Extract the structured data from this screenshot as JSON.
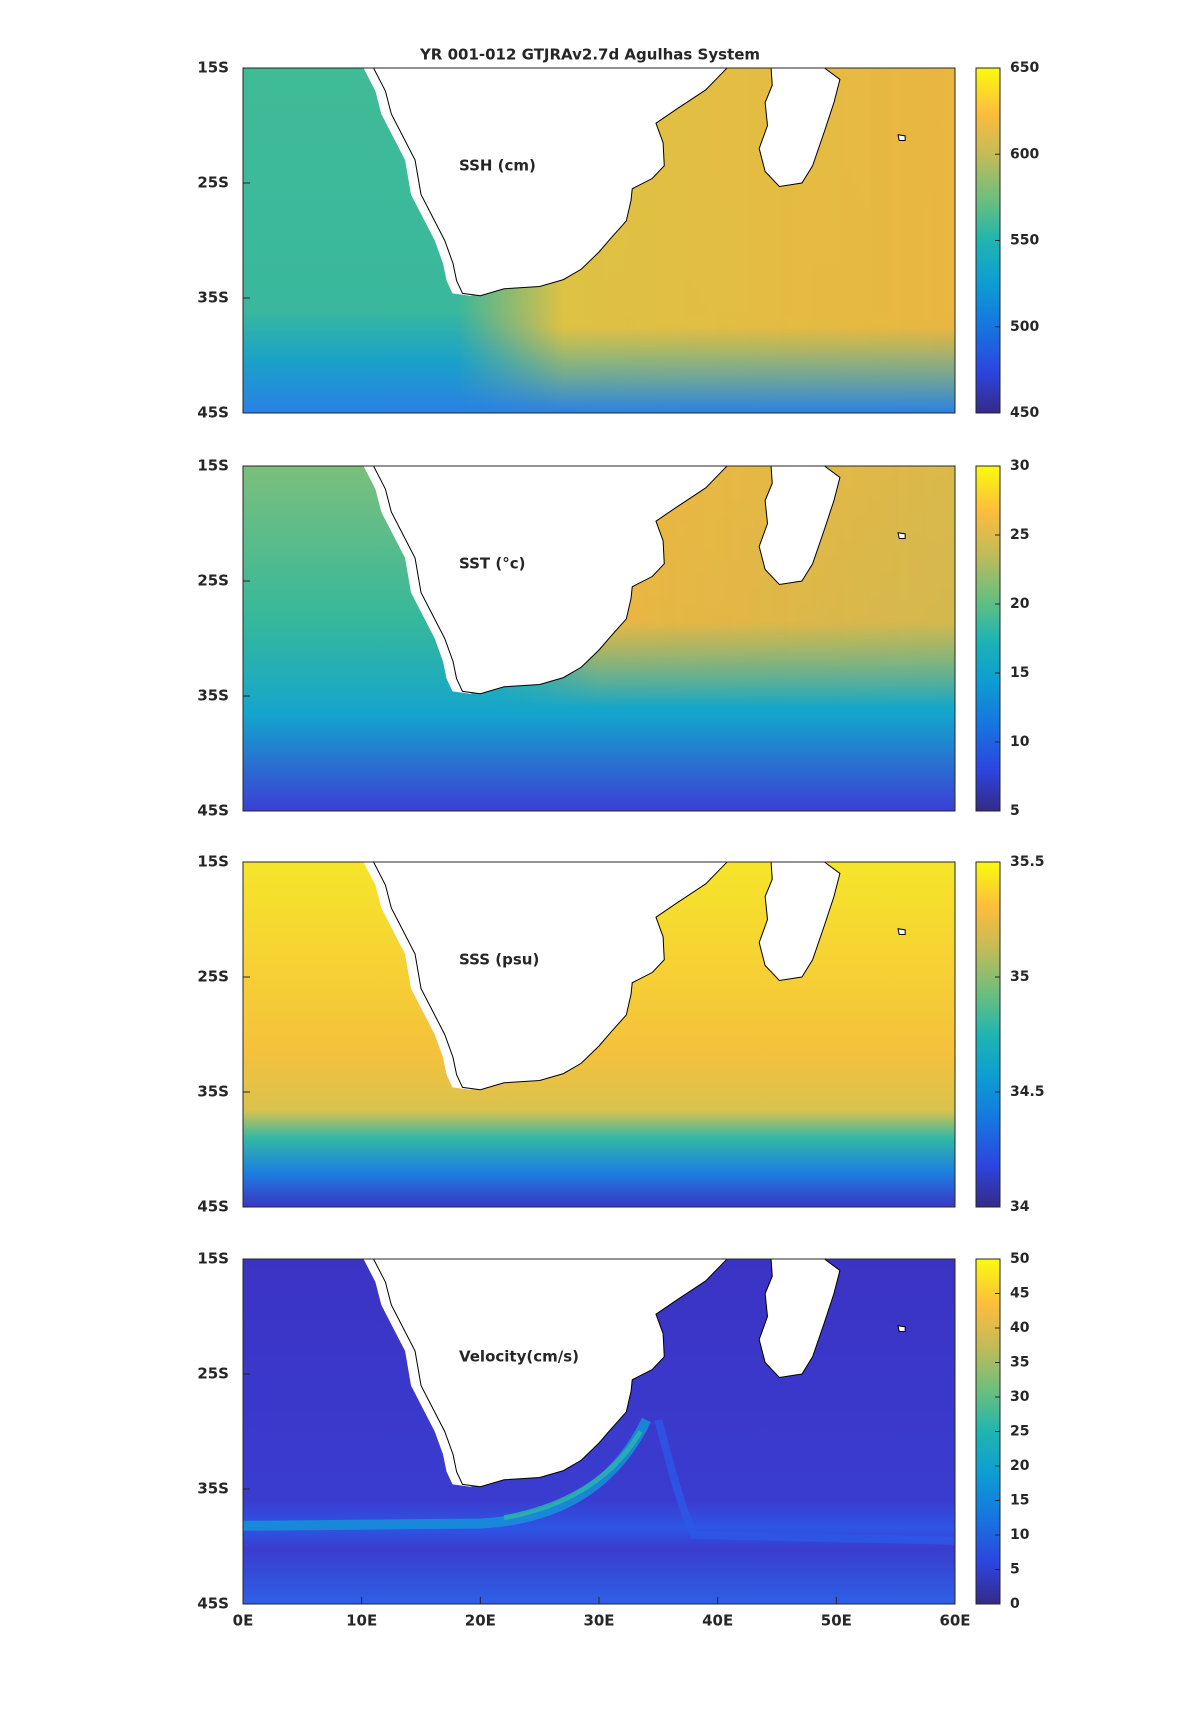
{
  "chart_data": [
    {
      "type": "heatmap",
      "title": "YR 001-012 GTJRAv2.7d Agulhas System",
      "label": "SSH (cm)",
      "yticks": [
        {
          "value": -15,
          "label": "15S"
        },
        {
          "value": -25,
          "label": "25S"
        },
        {
          "value": -35,
          "label": "35S"
        },
        {
          "value": -45,
          "label": "45S"
        }
      ],
      "ylim": [
        -45,
        -15
      ],
      "xlim": [
        0,
        60
      ],
      "clim": [
        450,
        650
      ],
      "cticks": [
        450,
        500,
        550,
        600,
        650
      ]
    },
    {
      "type": "heatmap",
      "label": "SST (°c)",
      "yticks": [
        {
          "value": -15,
          "label": "15S"
        },
        {
          "value": -25,
          "label": "25S"
        },
        {
          "value": -35,
          "label": "35S"
        },
        {
          "value": -45,
          "label": "45S"
        }
      ],
      "ylim": [
        -45,
        -15
      ],
      "xlim": [
        0,
        60
      ],
      "clim": [
        5,
        30
      ],
      "cticks": [
        5,
        10,
        15,
        20,
        25,
        30
      ]
    },
    {
      "type": "heatmap",
      "label": "SSS (psu)",
      "yticks": [
        {
          "value": -15,
          "label": "15S"
        },
        {
          "value": -25,
          "label": "25S"
        },
        {
          "value": -35,
          "label": "35S"
        },
        {
          "value": -45,
          "label": "45S"
        }
      ],
      "ylim": [
        -45,
        -15
      ],
      "xlim": [
        0,
        60
      ],
      "clim": [
        34,
        35.5
      ],
      "cticks": [
        34,
        34.5,
        35,
        35.5
      ]
    },
    {
      "type": "heatmap",
      "label": "Velocity(cm/s)",
      "yticks": [
        {
          "value": -15,
          "label": "15S"
        },
        {
          "value": -25,
          "label": "25S"
        },
        {
          "value": -35,
          "label": "35S"
        },
        {
          "value": -45,
          "label": "45S"
        }
      ],
      "ylim": [
        -45,
        -15
      ],
      "xlim": [
        0,
        60
      ],
      "xticks": [
        {
          "value": 0,
          "label": "0E"
        },
        {
          "value": 10,
          "label": "10E"
        },
        {
          "value": 20,
          "label": "20E"
        },
        {
          "value": 30,
          "label": "30E"
        },
        {
          "value": 40,
          "label": "40E"
        },
        {
          "value": 50,
          "label": "50E"
        },
        {
          "value": 60,
          "label": "60E"
        }
      ],
      "clim": [
        0,
        50
      ],
      "cticks": [
        0,
        5,
        10,
        15,
        20,
        25,
        30,
        35,
        40,
        45,
        50
      ]
    }
  ]
}
